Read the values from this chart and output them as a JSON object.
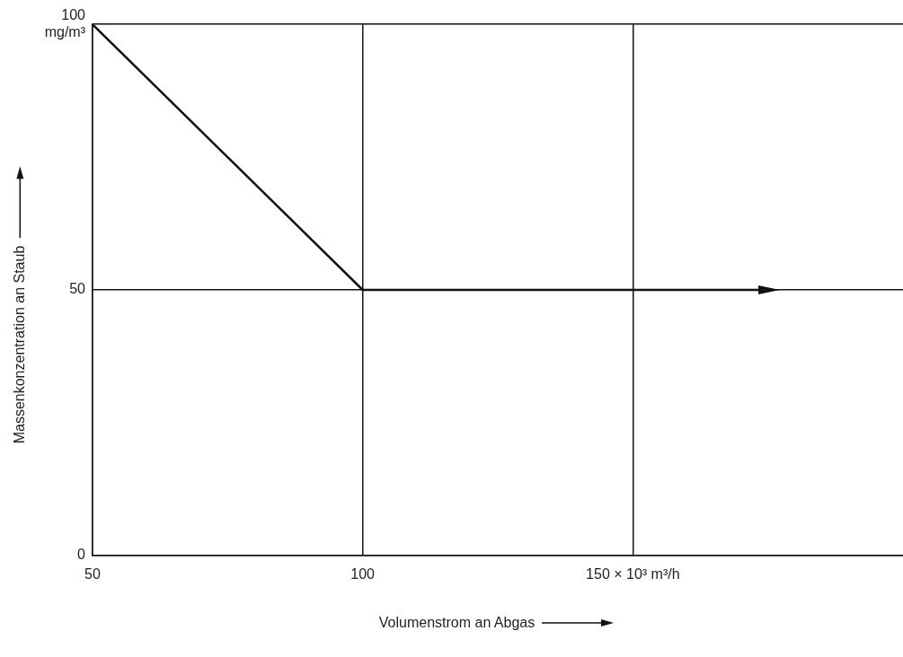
{
  "chart_data": {
    "type": "line",
    "xlabel": "Volumenstrom an Abgas",
    "ylabel": "Massenkonzentration an Staub",
    "xlim": [
      50,
      200
    ],
    "xticks": [
      50,
      100,
      {
        "value": 150,
        "label": "150 × 10³ m³/h"
      }
    ],
    "ylim": [
      0,
      100
    ],
    "yticks": [
      0,
      50,
      {
        "value": 100,
        "label": "100 mg/m³"
      }
    ],
    "grid": true,
    "legend": false,
    "marker": "none",
    "line_style": "solid",
    "series": [
      {
        "color": "#111111",
        "x": [
          50,
          100
        ],
        "values": [
          100,
          50
        ]
      }
    ]
  }
}
